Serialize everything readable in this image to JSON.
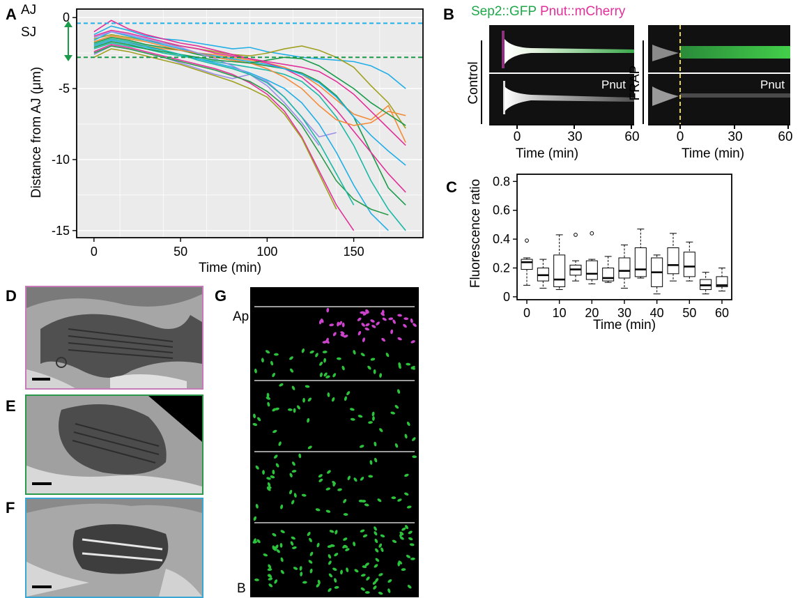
{
  "panels": {
    "A": "A",
    "B": "B",
    "C": "C",
    "D": "D",
    "E": "E",
    "F": "F",
    "G": "G"
  },
  "colors": {
    "aj": "#22aee6",
    "sj": "#1a9a4a",
    "sep2": "#1fa84a",
    "pnut": "#e0309a",
    "frap_line": "#e8d44a",
    "em_d": "#c77ab8",
    "em_e": "#2a9a4a",
    "em_f": "#3aa6d6",
    "dot_magenta": "#cc44cc",
    "dot_green": "#2cc23c"
  },
  "panel_a": {
    "aj_label": "AJ",
    "sj_label": "SJ",
    "chart_data": {
      "type": "line",
      "xlabel": "Time (min)",
      "ylabel": "Distance from AJ (μm)",
      "xlim": [
        -10,
        190
      ],
      "ylim": [
        -15.5,
        0.6
      ],
      "x_ticks": [
        0,
        50,
        100,
        150
      ],
      "y_ticks": [
        0,
        -5,
        -10,
        -15
      ],
      "y_tick_labels": [
        "0",
        "-5",
        "-10",
        "-15"
      ],
      "hlines": [
        {
          "name": "AJ",
          "y": -0.4
        },
        {
          "name": "SJ",
          "y": -2.8
        }
      ],
      "grid": true,
      "series_colors": [
        "#22aee6",
        "#1a9a4a",
        "#e0309a",
        "#f28c3a",
        "#9a8fe8",
        "#a0a020",
        "#1ab8a6",
        "#2a9a4a"
      ],
      "series": [
        {
          "color": "#22aee6",
          "x": [
            0,
            10,
            20,
            30,
            40,
            50,
            60,
            70,
            80,
            90,
            100,
            110,
            120,
            130,
            140,
            150,
            160,
            170,
            180
          ],
          "y": [
            -1.2,
            -0.6,
            -0.9,
            -1.3,
            -1.5,
            -1.6,
            -1.8,
            -2.0,
            -2.2,
            -2.1,
            -2.4,
            -2.6,
            -2.8,
            -2.9,
            -3.0,
            -3.1,
            -3.4,
            -4.0,
            -5.0
          ]
        },
        {
          "color": "#a0a020",
          "x": [
            0,
            10,
            20,
            30,
            40,
            50,
            60,
            70,
            80,
            90,
            100,
            110,
            120,
            130,
            140,
            150,
            160,
            170,
            180
          ],
          "y": [
            -1.5,
            -1.2,
            -1.4,
            -1.6,
            -1.8,
            -2.0,
            -2.2,
            -2.4,
            -2.6,
            -2.7,
            -2.5,
            -2.2,
            -2.0,
            -2.3,
            -2.8,
            -3.5,
            -4.8,
            -6.0,
            -7.8
          ]
        },
        {
          "color": "#f28c3a",
          "x": [
            0,
            10,
            20,
            30,
            40,
            50,
            60,
            70,
            80,
            90,
            100,
            110,
            120,
            130,
            140,
            150,
            160,
            170,
            180
          ],
          "y": [
            -2.0,
            -1.6,
            -1.8,
            -2.0,
            -2.2,
            -2.3,
            -2.5,
            -2.6,
            -2.8,
            -3.0,
            -3.2,
            -3.5,
            -4.0,
            -4.8,
            -5.8,
            -6.8,
            -7.2,
            -6.2,
            -8.8
          ]
        },
        {
          "color": "#1a9a4a",
          "x": [
            0,
            10,
            20,
            30,
            40,
            50,
            60,
            70,
            80,
            90,
            100,
            110,
            120,
            130,
            140,
            150,
            160,
            170,
            180
          ],
          "y": [
            -1.8,
            -1.4,
            -1.6,
            -1.9,
            -2.1,
            -2.3,
            -2.6,
            -2.8,
            -3.0,
            -3.2,
            -3.4,
            -3.6,
            -3.9,
            -4.5,
            -5.5,
            -7.0,
            -9.5,
            -12.0,
            -13.2
          ]
        },
        {
          "color": "#e0309a",
          "x": [
            0,
            10,
            20,
            30,
            40,
            50,
            60,
            70,
            80,
            90,
            100,
            110,
            120,
            130,
            140,
            150,
            160,
            170,
            180
          ],
          "y": [
            -1.0,
            -0.2,
            -0.8,
            -1.2,
            -1.5,
            -1.8,
            -2.0,
            -2.3,
            -2.6,
            -2.9,
            -3.2,
            -3.6,
            -4.2,
            -5.2,
            -6.5,
            -8.0,
            -9.5,
            -11.0,
            -12.3
          ]
        },
        {
          "color": "#22aee6",
          "x": [
            0,
            10,
            20,
            30,
            40,
            50,
            60,
            70,
            80,
            90,
            100,
            110,
            120,
            130,
            140,
            150,
            160,
            170,
            180
          ],
          "y": [
            -1.6,
            -1.0,
            -1.3,
            -1.6,
            -1.9,
            -2.2,
            -2.5,
            -2.7,
            -2.9,
            -3.1,
            -3.3,
            -3.6,
            -4.0,
            -4.6,
            -5.6,
            -7.0,
            -8.3,
            -9.4,
            -10.4
          ]
        },
        {
          "color": "#1ab8a6",
          "x": [
            0,
            10,
            20,
            30,
            40,
            50,
            60,
            70,
            80,
            90,
            100,
            110,
            120,
            130,
            140,
            150,
            160,
            170,
            180
          ],
          "y": [
            -2.2,
            -1.8,
            -2.0,
            -2.2,
            -2.5,
            -2.7,
            -2.9,
            -3.1,
            -3.3,
            -3.5,
            -3.7,
            -4.0,
            -4.5,
            -5.5,
            -7.0,
            -9.0,
            -11.5,
            -13.5,
            -15.0
          ]
        },
        {
          "color": "#9a8fe8",
          "x": [
            0,
            10,
            20,
            30,
            40,
            50,
            60,
            70,
            80,
            90,
            100,
            110,
            120,
            130,
            140
          ],
          "y": [
            -2.6,
            -2.0,
            -2.2,
            -2.5,
            -2.8,
            -3.2,
            -3.6,
            -4.0,
            -4.3,
            -4.0,
            -4.5,
            -5.6,
            -7.0,
            -8.4,
            -8.1
          ]
        },
        {
          "color": "#e0309a",
          "x": [
            0,
            10,
            20,
            30,
            40,
            50,
            60,
            70,
            80,
            90,
            100,
            110,
            120,
            130,
            140,
            150
          ],
          "y": [
            -2.4,
            -1.9,
            -2.1,
            -2.4,
            -2.7,
            -3.0,
            -3.3,
            -3.6,
            -4.0,
            -4.6,
            -5.4,
            -6.6,
            -8.4,
            -10.8,
            -13.2,
            -15.0
          ]
        },
        {
          "color": "#a0a020",
          "x": [
            0,
            10,
            20,
            30,
            40,
            50,
            60,
            70,
            80,
            90,
            100,
            110,
            120,
            130,
            140
          ],
          "y": [
            -2.8,
            -2.2,
            -2.4,
            -2.7,
            -3.0,
            -3.3,
            -3.7,
            -4.1,
            -4.5,
            -5.0,
            -5.6,
            -6.8,
            -8.5,
            -11.0,
            -13.5
          ]
        },
        {
          "color": "#22aee6",
          "x": [
            0,
            10,
            20,
            30,
            40,
            50,
            60,
            70,
            80,
            90,
            100,
            110,
            120,
            130,
            140,
            150,
            160,
            170
          ],
          "y": [
            -2.0,
            -1.6,
            -1.8,
            -2.1,
            -2.3,
            -2.6,
            -2.9,
            -3.2,
            -3.5,
            -3.9,
            -4.4,
            -5.0,
            -6.0,
            -7.5,
            -9.5,
            -11.8,
            -13.8,
            -15.0
          ]
        },
        {
          "color": "#2a9a4a",
          "x": [
            0,
            10,
            20,
            30,
            40,
            50,
            60,
            70,
            80,
            90,
            100,
            110,
            120,
            130,
            140,
            150,
            160,
            170
          ],
          "y": [
            -2.5,
            -2.0,
            -2.2,
            -2.5,
            -2.8,
            -3.1,
            -3.4,
            -3.7,
            -4.1,
            -4.5,
            -5.2,
            -6.2,
            -7.6,
            -9.5,
            -11.5,
            -12.8,
            -13.5,
            -13.9
          ]
        },
        {
          "color": "#f28c3a",
          "x": [
            0,
            10,
            20,
            30,
            40,
            50,
            60,
            70,
            80,
            90,
            100,
            110,
            120,
            130,
            140,
            150,
            160,
            170,
            180
          ],
          "y": [
            -1.7,
            -1.3,
            -1.5,
            -1.7,
            -2.0,
            -2.3,
            -2.5,
            -2.8,
            -3.0,
            -3.2,
            -3.6,
            -4.2,
            -5.0,
            -6.2,
            -7.2,
            -7.6,
            -7.4,
            -6.6,
            -6.9
          ]
        },
        {
          "color": "#9a8fe8",
          "x": [
            0,
            10,
            20,
            30,
            40,
            50,
            60,
            70,
            80,
            90,
            100,
            110,
            120,
            130
          ],
          "y": [
            -1.4,
            -1.0,
            -1.2,
            -1.5,
            -1.8,
            -2.1,
            -2.5,
            -2.9,
            -3.4,
            -4.0,
            -4.8,
            -6.0,
            -7.4,
            -9.0
          ]
        },
        {
          "color": "#1a9a4a",
          "x": [
            0,
            10,
            20,
            30,
            40,
            50,
            60,
            70,
            80,
            90,
            100,
            110,
            120,
            130,
            140,
            150,
            160,
            170,
            180
          ],
          "y": [
            -2.1,
            -1.7,
            -1.9,
            -2.2,
            -2.4,
            -2.6,
            -2.8,
            -3.0,
            -3.1,
            -3.2,
            -3.0,
            -2.8,
            -2.9,
            -3.4,
            -4.2,
            -5.0,
            -6.0,
            -6.8,
            -7.6
          ]
        },
        {
          "color": "#e0309a",
          "x": [
            0,
            10,
            20,
            30,
            40,
            50,
            60,
            70,
            80,
            90,
            100,
            110,
            120,
            130,
            140,
            150,
            160,
            170,
            180
          ],
          "y": [
            -1.3,
            -0.9,
            -1.1,
            -1.4,
            -1.7,
            -2.0,
            -2.2,
            -2.5,
            -2.7,
            -2.9,
            -3.1,
            -3.3,
            -3.5,
            -3.8,
            -4.5,
            -5.4,
            -6.6,
            -7.8,
            -9.0
          ]
        },
        {
          "color": "#1ab8a6",
          "x": [
            0,
            10,
            20,
            30,
            40,
            50,
            60,
            70,
            80,
            90,
            100,
            110,
            120,
            130,
            140,
            150
          ],
          "y": [
            -1.9,
            -1.5,
            -1.7,
            -2.0,
            -2.3,
            -2.6,
            -3.0,
            -3.3,
            -3.6,
            -4.0,
            -4.6,
            -5.6,
            -7.0,
            -8.8,
            -11.0,
            -13.2
          ]
        }
      ]
    }
  },
  "panel_b": {
    "legend_sep2": "Sep2::GFP",
    "legend_pnut": "Pnut::mCherry",
    "control_label": "Control",
    "frap_label": "FRAP",
    "pnut_label": "Pnut",
    "xlabel": "Time (min)",
    "x_ticks": [
      0,
      30,
      60
    ]
  },
  "panel_c": {
    "chart_data": {
      "type": "box",
      "xlabel": "Time (min)",
      "ylabel": "Fluorescence ratio",
      "ylim": [
        -0.02,
        0.85
      ],
      "xlim": [
        -3,
        63
      ],
      "y_ticks": [
        0,
        0.2,
        0.4,
        0.6,
        0.8
      ],
      "y_tick_labels": [
        "0",
        "0.2",
        "0.4",
        "0.6",
        "0.8"
      ],
      "x_ticks": [
        0,
        10,
        20,
        30,
        40,
        50,
        60
      ],
      "boxes": [
        {
          "x": 0,
          "lo": 0.08,
          "q1": 0.19,
          "med": 0.24,
          "q3": 0.26,
          "hi": 0.27,
          "out": [
            0.39
          ]
        },
        {
          "x": 5,
          "lo": 0.06,
          "q1": 0.11,
          "med": 0.15,
          "q3": 0.2,
          "hi": 0.26,
          "out": []
        },
        {
          "x": 10,
          "lo": 0.05,
          "q1": 0.07,
          "med": 0.12,
          "q3": 0.29,
          "hi": 0.43,
          "out": []
        },
        {
          "x": 15,
          "lo": 0.11,
          "q1": 0.15,
          "med": 0.19,
          "q3": 0.22,
          "hi": 0.25,
          "out": [
            0.43
          ]
        },
        {
          "x": 20,
          "lo": 0.09,
          "q1": 0.12,
          "med": 0.16,
          "q3": 0.25,
          "hi": 0.26,
          "out": [
            0.44
          ]
        },
        {
          "x": 25,
          "lo": 0.1,
          "q1": 0.11,
          "med": 0.13,
          "q3": 0.2,
          "hi": 0.28,
          "out": []
        },
        {
          "x": 30,
          "lo": 0.06,
          "q1": 0.13,
          "med": 0.18,
          "q3": 0.27,
          "hi": 0.36,
          "out": []
        },
        {
          "x": 35,
          "lo": 0.13,
          "q1": 0.14,
          "med": 0.19,
          "q3": 0.34,
          "hi": 0.47,
          "out": []
        },
        {
          "x": 40,
          "lo": 0.02,
          "q1": 0.07,
          "med": 0.17,
          "q3": 0.27,
          "hi": 0.29,
          "out": []
        },
        {
          "x": 45,
          "lo": 0.11,
          "q1": 0.16,
          "med": 0.22,
          "q3": 0.34,
          "hi": 0.44,
          "out": []
        },
        {
          "x": 50,
          "lo": 0.11,
          "q1": 0.14,
          "med": 0.21,
          "q3": 0.31,
          "hi": 0.38,
          "out": []
        },
        {
          "x": 55,
          "lo": 0.02,
          "q1": 0.05,
          "med": 0.08,
          "q3": 0.12,
          "hi": 0.17,
          "out": []
        },
        {
          "x": 60,
          "lo": 0.04,
          "q1": 0.07,
          "med": 0.08,
          "q3": 0.14,
          "hi": 0.2,
          "out": []
        }
      ]
    }
  },
  "panel_g": {
    "apical_label": "Ap",
    "basal_label": "B"
  }
}
